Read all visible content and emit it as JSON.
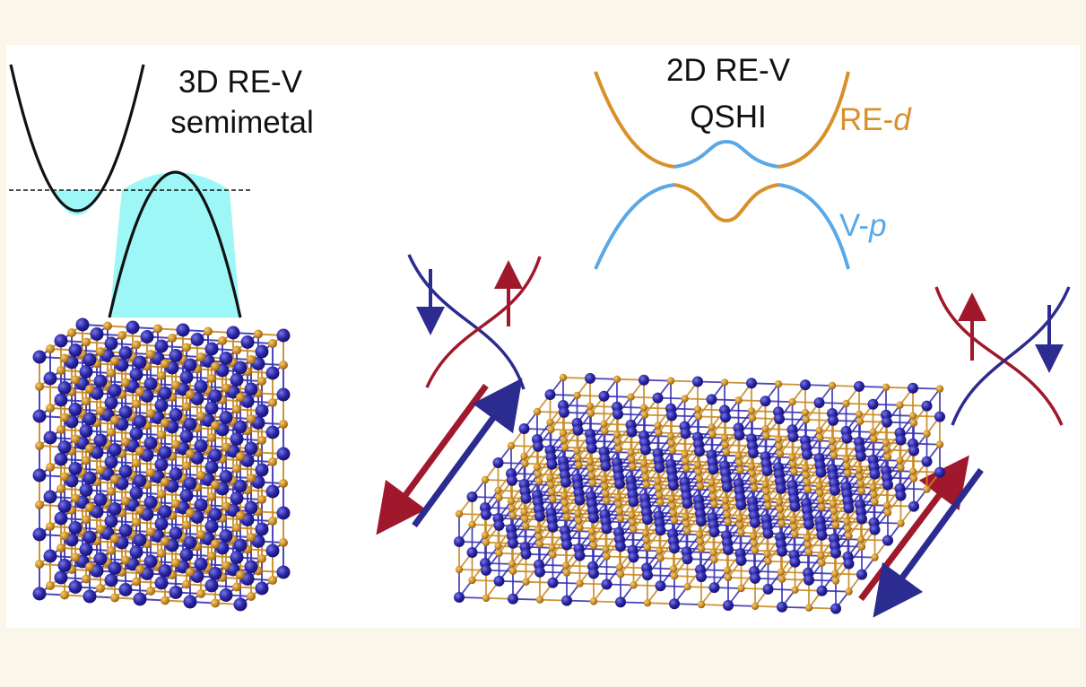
{
  "left": {
    "title_line1": "3D RE-V",
    "title_line2": "semimetal"
  },
  "right": {
    "title_line1": "2D RE-V",
    "title_line2": "QSHI",
    "band_upper": {
      "prefix": "RE-",
      "orbital": "d"
    },
    "band_lower": {
      "prefix": "V-",
      "orbital": "p"
    }
  },
  "colors": {
    "background": "#faf6ea",
    "panel": "#ffffff",
    "band_black": "#111111",
    "pocket_fill": "#9ef7f7",
    "re_orange": "#d8912a",
    "v_blue": "#5aa8e6",
    "atom_navy": "#1e1a8c",
    "atom_gold": "#c78a1f",
    "spin_red": "#a0182c",
    "spin_blue": "#2c2b8f"
  },
  "icons": [
    "up-arrow-icon",
    "down-arrow-icon"
  ]
}
